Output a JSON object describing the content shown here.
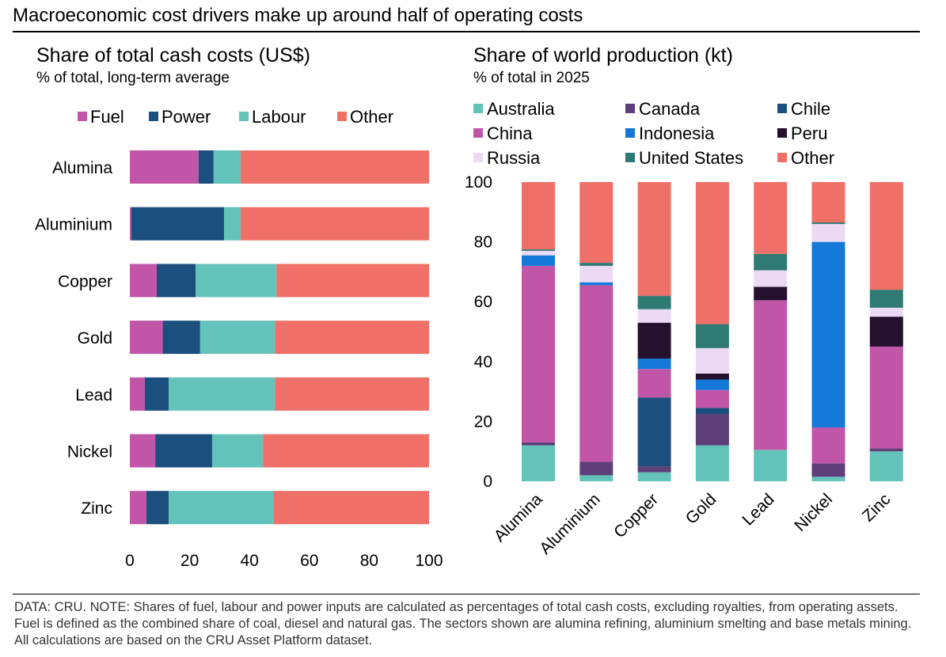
{
  "header": {
    "title": "Macroeconomic cost drivers make up around half of operating costs"
  },
  "footnote": "DATA: CRU. NOTE: Shares of fuel, labour and power inputs are calculated as percentages of total cash costs, excluding royalties, from operating assets. Fuel is defined as the combined share of coal, diesel and natural gas. The sectors shown are alumina refining, aluminium smelting and base metals mining. All calculations are based on the CRU Asset Platform dataset.",
  "colors": {
    "fuel": "#c156a8",
    "power": "#1b4f7e",
    "labour": "#63c3bb",
    "other": "#ef7068",
    "australia": "#63c3bb",
    "canada": "#5e3f7a",
    "chile": "#1b4f7e",
    "china": "#c156a8",
    "indonesia": "#1479d8",
    "peru": "#25102e",
    "russia": "#ecdaf5",
    "united_states": "#2f7b73"
  },
  "chart_data": [
    {
      "type": "bar",
      "orientation": "horizontal",
      "stacked": true,
      "title": "Share of total cash costs (US$)",
      "subtitle": "% of total, long-term average",
      "categories": [
        "Alumina",
        "Aluminium",
        "Copper",
        "Gold",
        "Lead",
        "Nickel",
        "Zinc"
      ],
      "series": [
        {
          "name": "Fuel",
          "color_key": "fuel",
          "values": [
            23,
            0.5,
            9,
            11,
            5,
            8.5,
            5.5
          ]
        },
        {
          "name": "Power",
          "color_key": "power",
          "values": [
            5,
            31,
            13,
            12.5,
            8,
            19,
            7.5
          ]
        },
        {
          "name": "Labour",
          "color_key": "labour",
          "values": [
            9,
            5.5,
            27,
            25,
            35.5,
            17,
            35
          ]
        },
        {
          "name": "Other",
          "color_key": "other",
          "values": [
            63,
            63,
            51,
            51.5,
            51.5,
            55.5,
            52
          ]
        }
      ],
      "xlim": [
        0,
        100
      ],
      "xticks": [
        0,
        20,
        40,
        60,
        80,
        100
      ],
      "legend_position": "top",
      "xlabel": "",
      "ylabel": ""
    },
    {
      "type": "bar",
      "orientation": "vertical",
      "stacked": true,
      "title": "Share of world production (kt)",
      "subtitle": "% of total in 2025",
      "categories": [
        "Alumina",
        "Aluminium",
        "Copper",
        "Gold",
        "Lead",
        "Nickel",
        "Zinc"
      ],
      "series": [
        {
          "name": "Australia",
          "color_key": "australia",
          "values": [
            12,
            2,
            3,
            12,
            10.5,
            1.5,
            10
          ]
        },
        {
          "name": "Canada",
          "color_key": "canada",
          "values": [
            1,
            4.5,
            2,
            10.5,
            0,
            4.5,
            1
          ]
        },
        {
          "name": "Chile",
          "color_key": "chile",
          "values": [
            0,
            0,
            23,
            2,
            0,
            0,
            0
          ]
        },
        {
          "name": "China",
          "color_key": "china",
          "values": [
            59,
            59,
            9.5,
            6,
            50,
            12,
            34
          ]
        },
        {
          "name": "Indonesia",
          "color_key": "indonesia",
          "values": [
            3.5,
            1,
            3.5,
            3.5,
            0,
            62,
            0
          ]
        },
        {
          "name": "Peru",
          "color_key": "peru",
          "values": [
            0,
            0,
            12,
            2,
            4.5,
            0,
            10
          ]
        },
        {
          "name": "Russia",
          "color_key": "russia",
          "values": [
            1.5,
            5.5,
            4.5,
            8.5,
            5.5,
            6,
            3
          ]
        },
        {
          "name": "United States",
          "color_key": "united_states",
          "values": [
            0.5,
            1,
            4.5,
            8,
            5.5,
            0.5,
            6
          ]
        },
        {
          "name": "Other",
          "color_key": "other",
          "values": [
            22.5,
            27,
            38,
            47.5,
            24,
            13.5,
            36
          ]
        }
      ],
      "ylim": [
        0,
        100
      ],
      "yticks": [
        0,
        20,
        40,
        60,
        80,
        100
      ],
      "legend_position": "top",
      "xlabel": "",
      "ylabel": ""
    }
  ]
}
